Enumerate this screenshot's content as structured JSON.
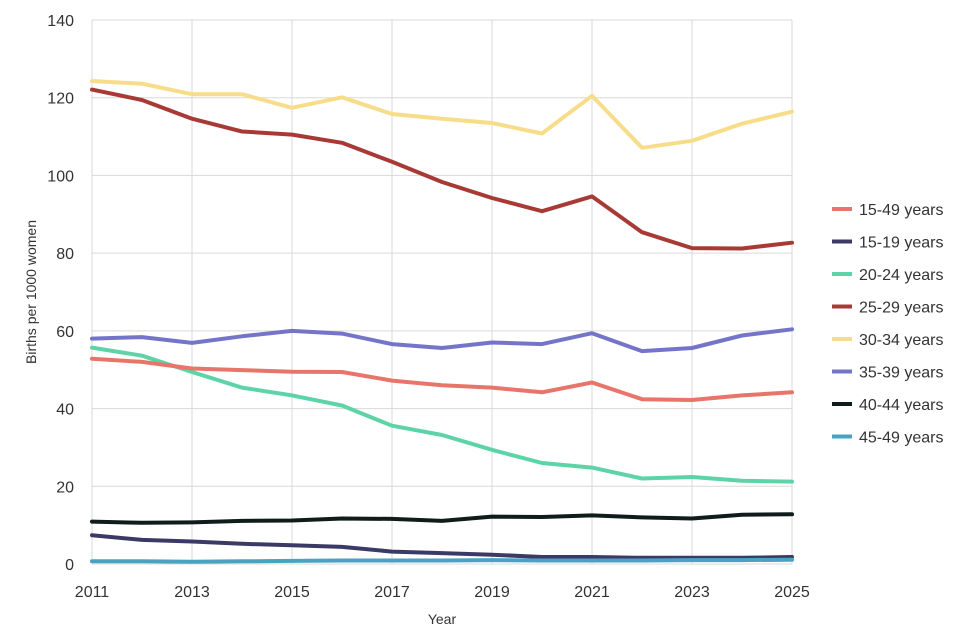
{
  "chart_data": {
    "type": "line",
    "title": "",
    "xlabel": "Year",
    "ylabel": "Births per 1000 women",
    "xlim": [
      2011,
      2025
    ],
    "ylim": [
      0,
      140
    ],
    "x_ticks": [
      "2011",
      "2013",
      "2015",
      "2017",
      "2019",
      "2021",
      "2023",
      "2025"
    ],
    "y_ticks": [
      "0",
      "20",
      "40",
      "60",
      "80",
      "100",
      "120",
      "140"
    ],
    "grid": true,
    "legend_position": "right",
    "x": [
      2011,
      2012,
      2013,
      2014,
      2015,
      2016,
      2017,
      2018,
      2019,
      2020,
      2021,
      2022,
      2023,
      2024,
      2025
    ],
    "series": [
      {
        "name": "15-49 years",
        "color": "#e8756a",
        "values": [
          52.8,
          52.0,
          50.3,
          49.9,
          49.5,
          49.4,
          47.2,
          46.0,
          45.4,
          44.2,
          46.7,
          42.4,
          42.2,
          43.4,
          44.2
        ]
      },
      {
        "name": "15-19 years",
        "color": "#3b3a66",
        "values": [
          7.4,
          6.2,
          5.8,
          5.2,
          4.8,
          4.4,
          3.2,
          2.8,
          2.4,
          1.8,
          1.8,
          1.6,
          1.6,
          1.6,
          1.8
        ]
      },
      {
        "name": "20-24 years",
        "color": "#5fd3a8",
        "values": [
          55.7,
          53.6,
          49.4,
          45.4,
          43.4,
          40.8,
          35.6,
          33.2,
          29.4,
          26.0,
          24.8,
          22.0,
          22.4,
          21.4,
          21.2
        ]
      },
      {
        "name": "25-29 years",
        "color": "#a83a36",
        "values": [
          122.1,
          119.4,
          114.6,
          111.3,
          110.5,
          108.4,
          103.5,
          98.3,
          94.2,
          90.8,
          94.6,
          85.4,
          81.3,
          81.2,
          82.7
        ]
      },
      {
        "name": "30-34 years",
        "color": "#f7dd8a",
        "values": [
          124.3,
          123.6,
          120.9,
          120.9,
          117.4,
          120.1,
          115.8,
          114.6,
          113.5,
          110.8,
          120.5,
          107.1,
          108.9,
          113.3,
          116.4
        ]
      },
      {
        "name": "35-39 years",
        "color": "#7474c9",
        "values": [
          58.0,
          58.4,
          56.9,
          58.6,
          60.0,
          59.3,
          56.6,
          55.6,
          57.0,
          56.6,
          59.4,
          54.8,
          55.6,
          58.8,
          60.4
        ]
      },
      {
        "name": "40-44 years",
        "color": "#0f1c1a",
        "values": [
          10.9,
          10.6,
          10.7,
          11.1,
          11.2,
          11.7,
          11.6,
          11.1,
          12.2,
          12.1,
          12.5,
          12.0,
          11.7,
          12.7,
          12.8
        ]
      },
      {
        "name": "45-49 years",
        "color": "#4aa2c2",
        "values": [
          0.7,
          0.7,
          0.6,
          0.7,
          0.8,
          0.9,
          0.9,
          0.9,
          1.0,
          0.9,
          0.9,
          0.9,
          1.0,
          1.0,
          1.1
        ]
      }
    ]
  }
}
